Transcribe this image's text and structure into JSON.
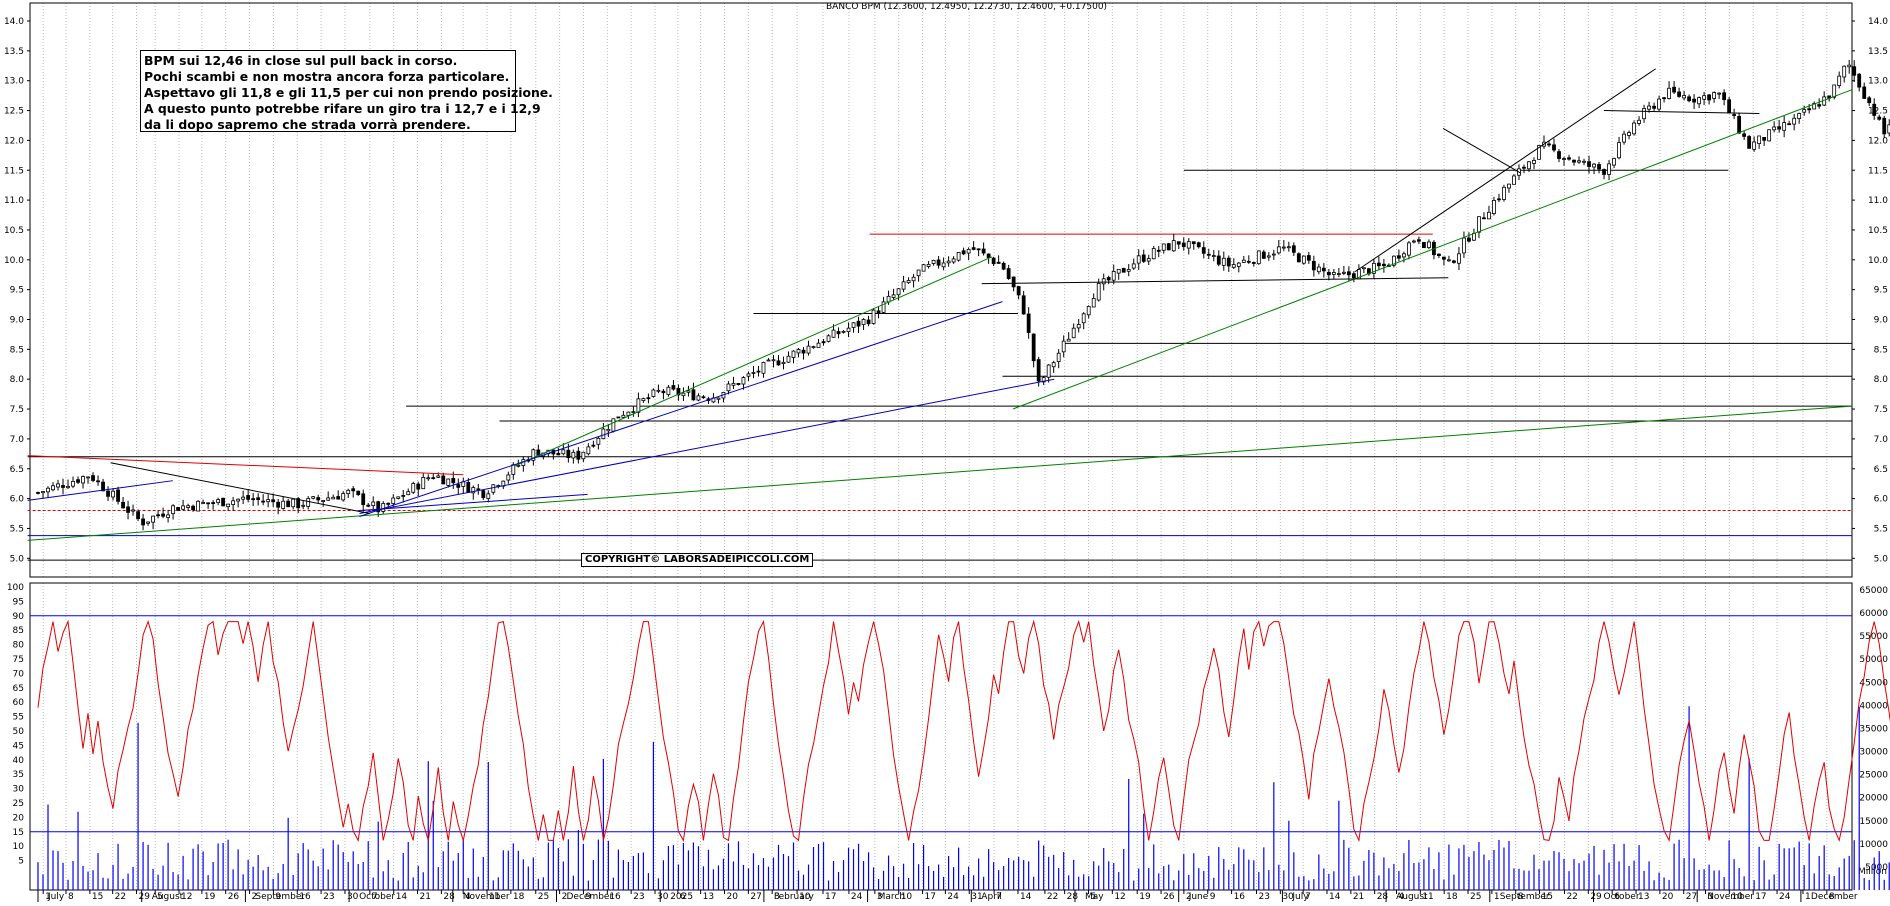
{
  "title": "BANCO BPM (12.3600, 12.4950, 12.2730, 12.4600, +0.17500)",
  "note": {
    "lines": [
      "BPM sui 12,46 in close sul pull back in corso.",
      "Pochi scambi e non mostra ancora forza particolare.",
      "Aspettavo gli 11,8 e gli 11,5 per cui non prendo posizione.",
      "A questo punto potrebbe rifare un giro tra i 12,7 e i 12,9",
      "da li dopo sapremo che strada vorrà prendere."
    ]
  },
  "copyright": "COPYRIGHT© LABORSADEIPICCOLI.COM",
  "colors": {
    "candle": "#000000",
    "oscillator": "#e00000",
    "volume": "#0000ff",
    "trend_green": "#008000",
    "trend_blue": "#0000c0",
    "resistance_red": "#e00000",
    "level_black": "#000000"
  },
  "chart_data": [
    {
      "type": "candlestick",
      "name": "price",
      "ylim": [
        4.8,
        14.2
      ],
      "yticks": [
        "5.0",
        "5.5",
        "6.0",
        "6.5",
        "7.0",
        "7.5",
        "8.0",
        "8.5",
        "9.0",
        "9.5",
        "10.0",
        "10.5",
        "11.0",
        "11.5",
        "12.0",
        "12.5",
        "13.0",
        "13.5",
        "14.0"
      ],
      "anchors": [
        {
          "m": 0,
          "v": 6.1
        },
        {
          "m": 0.5,
          "v": 6.4
        },
        {
          "m": 1.0,
          "v": 5.6
        },
        {
          "m": 1.3,
          "v": 5.85
        },
        {
          "m": 2.0,
          "v": 6.0
        },
        {
          "m": 2.5,
          "v": 5.9
        },
        {
          "m": 3.0,
          "v": 6.1
        },
        {
          "m": 3.3,
          "v": 5.8
        },
        {
          "m": 3.8,
          "v": 6.4
        },
        {
          "m": 4.3,
          "v": 6.1
        },
        {
          "m": 4.8,
          "v": 6.8
        },
        {
          "m": 5.2,
          "v": 6.7
        },
        {
          "m": 5.6,
          "v": 7.4
        },
        {
          "m": 6.0,
          "v": 7.8
        },
        {
          "m": 6.5,
          "v": 7.7
        },
        {
          "m": 7.0,
          "v": 8.2
        },
        {
          "m": 7.5,
          "v": 8.6
        },
        {
          "m": 8.0,
          "v": 9.0
        },
        {
          "m": 8.5,
          "v": 9.8
        },
        {
          "m": 9.0,
          "v": 10.2
        },
        {
          "m": 9.3,
          "v": 9.9
        },
        {
          "m": 9.5,
          "v": 9.2
        },
        {
          "m": 9.65,
          "v": 7.9
        },
        {
          "m": 9.9,
          "v": 8.6
        },
        {
          "m": 10.2,
          "v": 9.5
        },
        {
          "m": 10.6,
          "v": 10.0
        },
        {
          "m": 11.0,
          "v": 10.3
        },
        {
          "m": 11.5,
          "v": 9.9
        },
        {
          "m": 12.0,
          "v": 10.2
        },
        {
          "m": 12.5,
          "v": 9.7
        },
        {
          "m": 13.0,
          "v": 9.9
        },
        {
          "m": 13.3,
          "v": 10.4
        },
        {
          "m": 13.6,
          "v": 9.9
        },
        {
          "m": 14.0,
          "v": 10.9
        },
        {
          "m": 14.5,
          "v": 11.9
        },
        {
          "m": 14.9,
          "v": 11.6
        },
        {
          "m": 15.1,
          "v": 11.5
        },
        {
          "m": 15.4,
          "v": 12.3
        },
        {
          "m": 15.7,
          "v": 12.8
        },
        {
          "m": 16.0,
          "v": 12.7
        },
        {
          "m": 16.2,
          "v": 12.8
        },
        {
          "m": 16.5,
          "v": 11.9
        },
        {
          "m": 17.0,
          "v": 12.4
        },
        {
          "m": 17.3,
          "v": 12.8
        },
        {
          "m": 17.45,
          "v": 13.3
        },
        {
          "m": 17.7,
          "v": 12.5
        },
        {
          "m": 17.8,
          "v": 12.1
        },
        {
          "m": 17.9,
          "v": 12.46
        }
      ],
      "y_ranges_per_month": [
        6.45,
        5.45,
        5.55,
        6.0,
        6.75,
        7.75,
        8.3,
        8.7,
        10.45,
        10.4,
        10.4,
        10.3,
        10.8,
        12.0,
        13.0,
        13.1,
        13.5,
        12.6
      ]
    },
    {
      "type": "line+bar",
      "name": "oscillator-volume",
      "ylim_left": [
        0,
        100
      ],
      "yticks_left": [
        "5",
        "10",
        "15",
        "20",
        "25",
        "30",
        "35",
        "40",
        "45",
        "50",
        "55",
        "60",
        "65",
        "70",
        "75",
        "80",
        "85",
        "90",
        "95",
        "100"
      ],
      "ylim_right": [
        0,
        65000
      ],
      "yticks_right": [
        "5000",
        "10000",
        "15000",
        "20000",
        "25000",
        "30000",
        "35000",
        "40000",
        "45000",
        "50000",
        "55000",
        "60000",
        "65000"
      ],
      "levels": [
        90,
        15
      ],
      "right_axis_unit": "Million"
    }
  ],
  "x_axis": {
    "months": [
      {
        "label": "July",
        "m": 0
      },
      {
        "label": "August",
        "m": 1
      },
      {
        "label": "September",
        "m": 2
      },
      {
        "label": "October",
        "m": 3
      },
      {
        "label": "November",
        "m": 4
      },
      {
        "label": "December",
        "m": 5
      },
      {
        "label": "2025",
        "m": 6
      },
      {
        "label": "February",
        "m": 7
      },
      {
        "label": "March",
        "m": 8
      },
      {
        "label": "April",
        "m": 9
      },
      {
        "label": "May",
        "m": 10
      },
      {
        "label": "June",
        "m": 11
      },
      {
        "label": "July",
        "m": 12
      },
      {
        "label": "August",
        "m": 13
      },
      {
        "label": "September",
        "m": 14
      },
      {
        "label": "October",
        "m": 15
      },
      {
        "label": "November",
        "m": 16
      },
      {
        "label": "December",
        "m": 17
      }
    ],
    "days": [
      {
        "label": "1",
        "m": 0.05
      },
      {
        "label": "8",
        "m": 0.27
      },
      {
        "label": "15",
        "m": 0.5
      },
      {
        "label": "22",
        "m": 0.72
      },
      {
        "label": "29",
        "m": 0.95
      },
      {
        "label": "5",
        "m": 1.13
      },
      {
        "label": "12",
        "m": 1.36
      },
      {
        "label": "19",
        "m": 1.58
      },
      {
        "label": "26",
        "m": 1.81
      },
      {
        "label": "2",
        "m": 2.04
      },
      {
        "label": "9",
        "m": 2.27
      },
      {
        "label": "16",
        "m": 2.5
      },
      {
        "label": "23",
        "m": 2.73
      },
      {
        "label": "30",
        "m": 2.96
      },
      {
        "label": "7",
        "m": 3.2
      },
      {
        "label": "14",
        "m": 3.43
      },
      {
        "label": "21",
        "m": 3.66
      },
      {
        "label": "28",
        "m": 3.89
      },
      {
        "label": "4",
        "m": 4.1
      },
      {
        "label": "11",
        "m": 4.33
      },
      {
        "label": "18",
        "m": 4.56
      },
      {
        "label": "25",
        "m": 4.8
      },
      {
        "label": "2",
        "m": 5.03
      },
      {
        "label": "9",
        "m": 5.26
      },
      {
        "label": "16",
        "m": 5.49
      },
      {
        "label": "23",
        "m": 5.72
      },
      {
        "label": "30",
        "m": 5.95
      },
      {
        "label": "6",
        "m": 6.17
      },
      {
        "label": "13",
        "m": 6.39
      },
      {
        "label": "20",
        "m": 6.62
      },
      {
        "label": "27",
        "m": 6.85
      },
      {
        "label": "3",
        "m": 7.08
      },
      {
        "label": "10",
        "m": 7.32
      },
      {
        "label": "17",
        "m": 7.57
      },
      {
        "label": "24",
        "m": 7.82
      },
      {
        "label": "3",
        "m": 8.07
      },
      {
        "label": "10",
        "m": 8.3
      },
      {
        "label": "17",
        "m": 8.53
      },
      {
        "label": "24",
        "m": 8.75
      },
      {
        "label": "31",
        "m": 8.98
      },
      {
        "label": "7",
        "m": 9.22
      },
      {
        "label": "14",
        "m": 9.45
      },
      {
        "label": "22",
        "m": 9.71
      },
      {
        "label": "28",
        "m": 9.9
      },
      {
        "label": "5",
        "m": 10.13
      },
      {
        "label": "12",
        "m": 10.36
      },
      {
        "label": "19",
        "m": 10.6
      },
      {
        "label": "26",
        "m": 10.83
      },
      {
        "label": "2",
        "m": 11.05
      },
      {
        "label": "9",
        "m": 11.28
      },
      {
        "label": "16",
        "m": 11.51
      },
      {
        "label": "23",
        "m": 11.75
      },
      {
        "label": "30",
        "m": 11.98
      },
      {
        "label": "7",
        "m": 12.2
      },
      {
        "label": "14",
        "m": 12.43
      },
      {
        "label": "21",
        "m": 12.66
      },
      {
        "label": "28",
        "m": 12.89
      },
      {
        "label": "4",
        "m": 13.1
      },
      {
        "label": "11",
        "m": 13.33
      },
      {
        "label": "18",
        "m": 13.56
      },
      {
        "label": "25",
        "m": 13.79
      },
      {
        "label": "1",
        "m": 14.02
      },
      {
        "label": "8",
        "m": 14.25
      },
      {
        "label": "15",
        "m": 14.48
      },
      {
        "label": "22",
        "m": 14.72
      },
      {
        "label": "29",
        "m": 14.95
      },
      {
        "label": "6",
        "m": 15.18
      },
      {
        "label": "13",
        "m": 15.41
      },
      {
        "label": "20",
        "m": 15.64
      },
      {
        "label": "27",
        "m": 15.87
      },
      {
        "label": "3",
        "m": 16.08
      },
      {
        "label": "10",
        "m": 16.31
      },
      {
        "label": "17",
        "m": 16.54
      },
      {
        "label": "24",
        "m": 16.77
      },
      {
        "label": "1",
        "m": 17.02
      },
      {
        "label": "8",
        "m": 17.25
      }
    ]
  },
  "annotations": {
    "horizontal_levels": [
      {
        "value": 11.5,
        "from_m": 11.05,
        "to_m": 16.3,
        "color": "level_black"
      },
      {
        "value": 10.43,
        "from_m": 8.02,
        "to_m": 13.45,
        "color": "resistance_red"
      },
      {
        "value": 8.6,
        "from_m": 9.9,
        "to_m": 18.0,
        "color": "level_black"
      },
      {
        "value": 8.05,
        "from_m": 9.3,
        "to_m": 18.0,
        "color": "level_black"
      },
      {
        "value": 7.55,
        "from_m": 3.55,
        "to_m": 18.0,
        "color": "level_black"
      },
      {
        "value": 7.3,
        "from_m": 4.45,
        "to_m": 18.0,
        "color": "level_black"
      },
      {
        "value": 6.7,
        "from_m": -0.1,
        "to_m": 18.0,
        "color": "level_black"
      },
      {
        "value": 5.8,
        "from_m": -0.1,
        "to_m": 18.0,
        "color": "resistance_red",
        "dashed": true
      },
      {
        "value": 5.38,
        "from_m": -0.1,
        "to_m": 18.0,
        "color": "trend_blue"
      },
      {
        "value": 4.97,
        "from_m": -0.1,
        "to_m": 18.0,
        "color": "level_black"
      },
      {
        "value": 9.1,
        "from_m": 6.9,
        "to_m": 9.45,
        "color": "level_black"
      }
    ],
    "trendlines": [
      {
        "m1": -0.1,
        "v1": 5.3,
        "m2": 18.0,
        "v2": 7.55,
        "color": "trend_green"
      },
      {
        "m1": 9.4,
        "v1": 7.5,
        "m2": 18.0,
        "v2": 12.85,
        "color": "trend_green"
      },
      {
        "m1": 4.6,
        "v1": 6.55,
        "m2": 9.2,
        "v2": 10.05,
        "color": "trend_green"
      },
      {
        "m1": 3.1,
        "v1": 5.7,
        "m2": 9.3,
        "v2": 9.3,
        "color": "trend_blue"
      },
      {
        "m1": 3.1,
        "v1": 5.75,
        "m2": 9.8,
        "v2": 8.0,
        "color": "trend_blue"
      },
      {
        "m1": 3.1,
        "v1": 5.8,
        "m2": 5.3,
        "v2": 6.07,
        "color": "trend_blue"
      },
      {
        "m1": -0.1,
        "v1": 5.97,
        "m2": 1.3,
        "v2": 6.3,
        "color": "trend_blue"
      },
      {
        "m1": -0.1,
        "v1": 6.72,
        "m2": 4.1,
        "v2": 6.4,
        "color": "resistance_red"
      },
      {
        "m1": 0.7,
        "v1": 6.6,
        "m2": 3.2,
        "v2": 5.75,
        "color": "level_black"
      },
      {
        "m1": 9.1,
        "v1": 9.6,
        "m2": 13.6,
        "v2": 9.7,
        "color": "level_black"
      },
      {
        "m1": 12.7,
        "v1": 9.8,
        "m2": 15.6,
        "v2": 13.2,
        "color": "level_black"
      },
      {
        "m1": 13.55,
        "v1": 12.2,
        "m2": 14.3,
        "v2": 11.45,
        "color": "level_black"
      },
      {
        "m1": 15.1,
        "v1": 12.5,
        "m2": 16.6,
        "v2": 12.45,
        "color": "level_black"
      }
    ]
  }
}
